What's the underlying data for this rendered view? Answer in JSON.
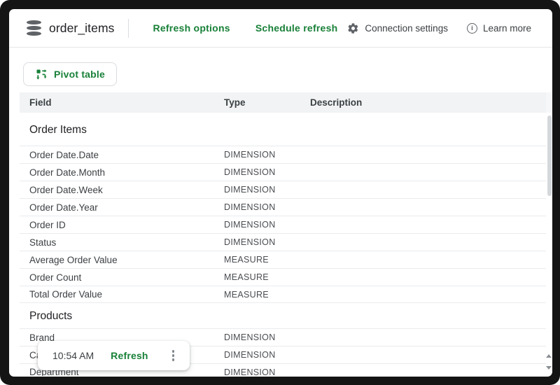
{
  "header": {
    "title": "order_items",
    "database_icon": "database-icon",
    "refresh_options_label": "Refresh options",
    "schedule_refresh_label": "Schedule refresh",
    "connection_settings_label": "Connection settings",
    "connection_settings_icon": "gear-icon",
    "learn_more_label": "Learn more",
    "learn_more_icon": "info-icon"
  },
  "toolbar": {
    "pivot_table_label": "Pivot table",
    "pivot_table_icon": "pivot-table-icon"
  },
  "table": {
    "columns": [
      "Field",
      "Type",
      "Description"
    ],
    "sections": [
      {
        "name": "Order Items",
        "rows": [
          {
            "field": "Order Date.Date",
            "type": "DIMENSION",
            "description": ""
          },
          {
            "field": "Order Date.Month",
            "type": "DIMENSION",
            "description": ""
          },
          {
            "field": "Order Date.Week",
            "type": "DIMENSION",
            "description": ""
          },
          {
            "field": "Order Date.Year",
            "type": "DIMENSION",
            "description": ""
          },
          {
            "field": "Order ID",
            "type": "DIMENSION",
            "description": ""
          },
          {
            "field": "Status",
            "type": "DIMENSION",
            "description": ""
          },
          {
            "field": "Average Order Value",
            "type": "MEASURE",
            "description": ""
          },
          {
            "field": "Order Count",
            "type": "MEASURE",
            "description": ""
          },
          {
            "field": "Total Order Value",
            "type": "MEASURE",
            "description": ""
          }
        ]
      },
      {
        "name": "Products",
        "rows": [
          {
            "field": "Brand",
            "type": "DIMENSION",
            "description": ""
          },
          {
            "field": "Category",
            "type": "DIMENSION",
            "description": ""
          },
          {
            "field": "Department",
            "type": "DIMENSION",
            "description": ""
          }
        ]
      }
    ]
  },
  "toast": {
    "time": "10:54 AM",
    "refresh_label": "Refresh",
    "menu_icon": "kebab-menu-icon"
  },
  "colors": {
    "accent_green": "#188038",
    "text_dark": "#202124",
    "text_gray": "#5f6368",
    "table_header_bg": "#f1f3f4",
    "row_border": "#e9ebee",
    "window_frame": "#141414"
  }
}
